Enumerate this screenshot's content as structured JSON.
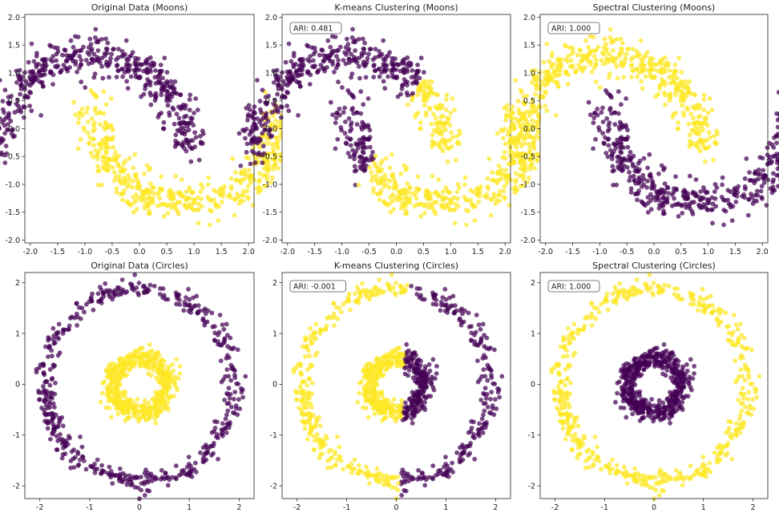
{
  "colors": {
    "purple": "#440154",
    "yellow": "#fde725",
    "frame": "#222222"
  },
  "chart_data": [
    {
      "id": "moons-original",
      "type": "scatter",
      "title": "Original Data (Moons)",
      "dataset": "moons",
      "coloring": "true",
      "ari": null,
      "xlim": [
        -2.1,
        2.1
      ],
      "ylim": [
        -2.05,
        2.05
      ],
      "xticks": [
        "-2.0",
        "-1.5",
        "-1.0",
        "-0.5",
        "0.0",
        "0.5",
        "1.0",
        "1.5",
        "2.0"
      ],
      "yticks": [
        "-2.0",
        "-1.5",
        "-1.0",
        "-0.5",
        "0.0",
        "0.5",
        "1.0",
        "1.5",
        "2.0"
      ],
      "xlabel": "",
      "ylabel": "",
      "grid": false,
      "n_points_per_cluster": 500,
      "noise": 0.1,
      "scale": 1.75
    },
    {
      "id": "moons-kmeans",
      "type": "scatter",
      "title": "K-means Clustering (Moons)",
      "dataset": "moons",
      "coloring": "kmeans",
      "ari": "ARI: 0.481",
      "xlim": [
        -2.1,
        2.1
      ],
      "ylim": [
        -2.05,
        2.05
      ],
      "xticks": [
        "-2.0",
        "-1.5",
        "-1.0",
        "-0.5",
        "0.0",
        "0.5",
        "1.0",
        "1.5",
        "2.0"
      ],
      "yticks": [
        "-2.0",
        "-1.5",
        "-1.0",
        "-0.5",
        "0.0",
        "0.5",
        "1.0",
        "1.5",
        "2.0"
      ],
      "xlabel": "",
      "ylabel": "",
      "grid": false,
      "n_points_per_cluster": 500,
      "noise": 0.1,
      "scale": 1.75
    },
    {
      "id": "moons-spectral",
      "type": "scatter",
      "title": "Spectral Clustering (Moons)",
      "dataset": "moons",
      "coloring": "swapped",
      "ari": "ARI: 1.000",
      "xlim": [
        -2.1,
        2.1
      ],
      "ylim": [
        -2.05,
        2.05
      ],
      "xticks": [
        "-2.0",
        "-1.5",
        "-1.0",
        "-0.5",
        "0.0",
        "0.5",
        "1.0",
        "1.5",
        "2.0"
      ],
      "yticks": [
        "-2.0",
        "-1.5",
        "-1.0",
        "-0.5",
        "0.0",
        "0.5",
        "1.0",
        "1.5",
        "2.0"
      ],
      "xlabel": "",
      "ylabel": "",
      "grid": false,
      "n_points_per_cluster": 500,
      "noise": 0.1,
      "scale": 1.75
    },
    {
      "id": "circles-original",
      "type": "scatter",
      "title": "Original Data (Circles)",
      "dataset": "circles",
      "coloring": "true",
      "ari": null,
      "xlim": [
        -2.3,
        2.3
      ],
      "ylim": [
        -2.25,
        2.2
      ],
      "xticks": [
        "-2",
        "-1",
        "0",
        "1",
        "2"
      ],
      "yticks": [
        "-2",
        "-1",
        "0",
        "1",
        "2"
      ],
      "xlabel": "",
      "ylabel": "",
      "grid": false,
      "n_points_per_cluster": 500,
      "outer_radius": 1.9,
      "inner_radius": 0.55
    },
    {
      "id": "circles-kmeans",
      "type": "scatter",
      "title": "K-means Clustering (Circles)",
      "dataset": "circles",
      "coloring": "kmeans",
      "ari": "ARI: -0.001",
      "xlim": [
        -2.3,
        2.3
      ],
      "ylim": [
        -2.25,
        2.2
      ],
      "xticks": [
        "-2",
        "-1",
        "0",
        "1",
        "2"
      ],
      "yticks": [
        "-2",
        "-1",
        "0",
        "1",
        "2"
      ],
      "xlabel": "",
      "ylabel": "",
      "grid": false,
      "n_points_per_cluster": 500,
      "outer_radius": 1.9,
      "inner_radius": 0.55
    },
    {
      "id": "circles-spectral",
      "type": "scatter",
      "title": "Spectral Clustering (Circles)",
      "dataset": "circles",
      "coloring": "swapped",
      "ari": "ARI: 1.000",
      "xlim": [
        -2.3,
        2.3
      ],
      "ylim": [
        -2.25,
        2.2
      ],
      "xticks": [
        "-2",
        "-1",
        "0",
        "1",
        "2"
      ],
      "yticks": [
        "-2",
        "-1",
        "0",
        "1",
        "2"
      ],
      "xlabel": "",
      "ylabel": "",
      "grid": false,
      "n_points_per_cluster": 500,
      "outer_radius": 1.9,
      "inner_radius": 0.55
    }
  ]
}
